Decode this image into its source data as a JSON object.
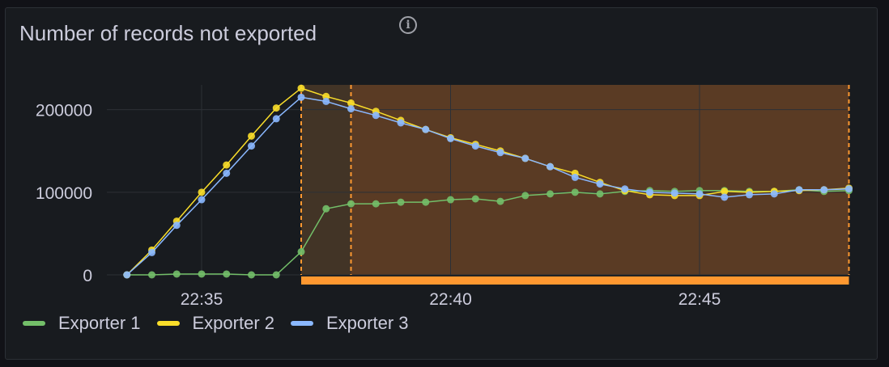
{
  "panel": {
    "title": "Number of records not exported",
    "info_icon": "info-circle-icon"
  },
  "colors": {
    "background": "#181b1f",
    "grid": "#2c3036",
    "text": "#ccccdc",
    "region_fill": "#5a3b24",
    "region_left_fill": "#423426",
    "region_dashed": "#ff9830",
    "region_bar": "#ff9830"
  },
  "chart_data": {
    "type": "line",
    "title": "Number of records not exported",
    "ylim": [
      0,
      230000
    ],
    "yticks": [
      0,
      100000,
      200000
    ],
    "ytick_labels": [
      "0",
      "100000",
      "200000"
    ],
    "xticks": [
      "22:35",
      "22:40",
      "22:45"
    ],
    "x": [
      "22:33:30",
      "22:34:00",
      "22:34:30",
      "22:35:00",
      "22:35:30",
      "22:36:00",
      "22:36:30",
      "22:37:00",
      "22:37:30",
      "22:38:00",
      "22:38:30",
      "22:39:00",
      "22:39:30",
      "22:40:00",
      "22:40:30",
      "22:41:00",
      "22:41:30",
      "22:42:00",
      "22:42:30",
      "22:43:00",
      "22:43:30",
      "22:44:00",
      "22:44:30",
      "22:45:00",
      "22:45:30",
      "22:46:00",
      "22:46:30",
      "22:47:00",
      "22:47:30",
      "22:48:00"
    ],
    "series": [
      {
        "name": "Exporter 1",
        "color": "#73bf69",
        "values": [
          0,
          0,
          1000,
          1000,
          1000,
          0,
          0,
          28000,
          80000,
          86000,
          86000,
          88000,
          88000,
          91000,
          92000,
          89000,
          96000,
          98000,
          100000,
          98000,
          101000,
          102000,
          101000,
          102000,
          102000,
          101000,
          101000,
          103000,
          101000,
          102000
        ]
      },
      {
        "name": "Exporter 2",
        "color": "#fade2a",
        "values": [
          0,
          30000,
          65000,
          100000,
          133000,
          168000,
          202000,
          226000,
          216000,
          208000,
          198000,
          187000,
          176000,
          166000,
          158000,
          150000,
          141000,
          131000,
          123000,
          112000,
          102000,
          97000,
          96000,
          96000,
          101000,
          100000,
          101000,
          102000,
          103000,
          105000
        ]
      },
      {
        "name": "Exporter 3",
        "color": "#8ab8ff",
        "values": [
          0,
          27000,
          60000,
          91000,
          123000,
          156000,
          189000,
          215000,
          210000,
          201000,
          193000,
          184000,
          176000,
          165000,
          156000,
          148000,
          141000,
          131000,
          118000,
          110000,
          104000,
          100000,
          99000,
          98000,
          94000,
          97000,
          98000,
          103000,
          103000,
          104000
        ]
      }
    ],
    "annotation_region": {
      "start": "22:37:00",
      "end": "22:48:00",
      "marker": "22:38:00"
    },
    "legend_position": "bottom-left",
    "grid": true
  }
}
